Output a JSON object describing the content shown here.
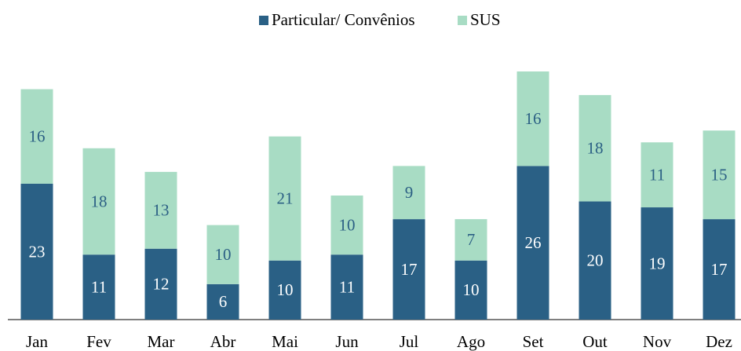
{
  "chart_data": {
    "type": "stacked_bar",
    "categories": [
      "Jan",
      "Fev",
      "Mar",
      "Abr",
      "Mai",
      "Jun",
      "Jul",
      "Ago",
      "Set",
      "Out",
      "Nov",
      "Dez"
    ],
    "series": [
      {
        "name": "Particular/ Convênios",
        "color": "#2a6085",
        "values": [
          23,
          11,
          12,
          6,
          10,
          11,
          17,
          10,
          26,
          20,
          19,
          17
        ]
      },
      {
        "name": "SUS",
        "color": "#a8dcc4",
        "values": [
          16,
          18,
          13,
          10,
          21,
          10,
          9,
          7,
          16,
          18,
          11,
          15
        ]
      }
    ],
    "ylim": [
      0,
      42
    ],
    "legend": "top"
  }
}
